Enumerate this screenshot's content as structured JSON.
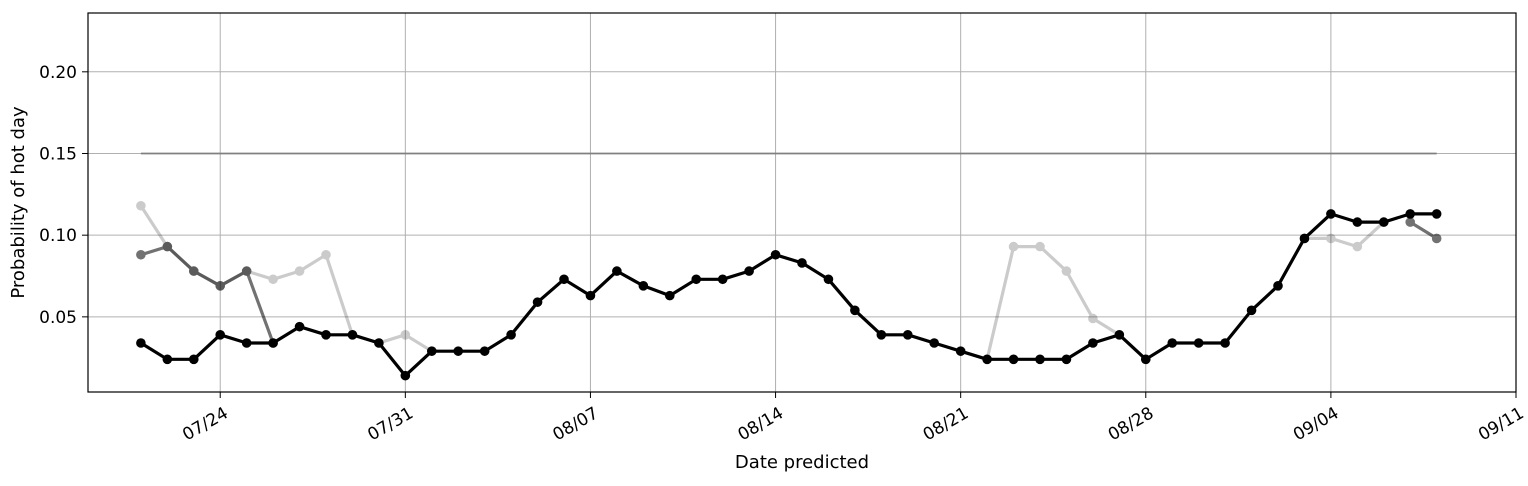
{
  "chart_data": {
    "type": "line",
    "xlabel": "Date predicted",
    "ylabel": "Probability of hot day",
    "ylim": [
      0.004,
      0.236
    ],
    "xlim": [
      "2024-07-19",
      "2024-09-11"
    ],
    "grid": true,
    "y_ticks": [
      0.05,
      0.1,
      0.15,
      0.2
    ],
    "y_tick_labels": [
      "0.05",
      "0.10",
      "0.15",
      "0.20"
    ],
    "x_ticks": [
      "2024-07-24",
      "2024-07-31",
      "2024-08-07",
      "2024-08-14",
      "2024-08-21",
      "2024-08-28",
      "2024-09-04",
      "2024-09-11"
    ],
    "x_tick_labels": [
      "07/24",
      "07/31",
      "08/07",
      "08/14",
      "08/21",
      "08/28",
      "09/04",
      "09/11"
    ],
    "reference_line": {
      "value": 0.15,
      "x": [
        "2024-07-21",
        "2024-09-08"
      ],
      "color": "#808080"
    },
    "series": [
      {
        "color": "#000000",
        "opacity": 0.2,
        "x": [
          "2024-07-21",
          "2024-07-22",
          "2024-07-23",
          "2024-07-24",
          "2024-07-25",
          "2024-07-26",
          "2024-07-27",
          "2024-07-28",
          "2024-07-29",
          "2024-07-30",
          "2024-07-31",
          "2024-08-01",
          "2024-08-21",
          "2024-08-22",
          "2024-08-23",
          "2024-08-24",
          "2024-08-25",
          "2024-08-26",
          "2024-08-27",
          "2024-08-28",
          "2024-09-03",
          "2024-09-04",
          "2024-09-05",
          "2024-09-06"
        ],
        "y": [
          0.118,
          0.093,
          0.078,
          0.069,
          0.078,
          0.073,
          0.078,
          0.088,
          0.039,
          0.034,
          0.039,
          0.029,
          0.029,
          0.024,
          0.093,
          0.093,
          0.078,
          0.049,
          0.039,
          0.024,
          0.098,
          0.098,
          0.093,
          0.108
        ]
      },
      {
        "color": "#000000",
        "opacity": 0.55,
        "x": [
          "2024-07-21",
          "2024-07-22",
          "2024-07-23",
          "2024-07-24",
          "2024-07-25",
          "2024-07-26",
          "2024-09-07",
          "2024-09-08"
        ],
        "y": [
          0.088,
          0.093,
          0.078,
          0.069,
          0.078,
          0.034,
          0.108,
          0.098
        ]
      },
      {
        "color": "#000000",
        "opacity": 1,
        "x": [
          "2024-07-21",
          "2024-07-22",
          "2024-07-23",
          "2024-07-24",
          "2024-07-25",
          "2024-07-26",
          "2024-07-27",
          "2024-07-28",
          "2024-07-29",
          "2024-07-30",
          "2024-07-31",
          "2024-08-01",
          "2024-08-02",
          "2024-08-03",
          "2024-08-04",
          "2024-08-05",
          "2024-08-06",
          "2024-08-07",
          "2024-08-08",
          "2024-08-09",
          "2024-08-10",
          "2024-08-11",
          "2024-08-12",
          "2024-08-13",
          "2024-08-14",
          "2024-08-15",
          "2024-08-16",
          "2024-08-17",
          "2024-08-18",
          "2024-08-19",
          "2024-08-20",
          "2024-08-21",
          "2024-08-22",
          "2024-08-23",
          "2024-08-24",
          "2024-08-25",
          "2024-08-26",
          "2024-08-27",
          "2024-08-28",
          "2024-08-29",
          "2024-08-30",
          "2024-08-31",
          "2024-09-01",
          "2024-09-02",
          "2024-09-03",
          "2024-09-04",
          "2024-09-05",
          "2024-09-06",
          "2024-09-07",
          "2024-09-08"
        ],
        "y": [
          0.034,
          0.024,
          0.024,
          0.039,
          0.034,
          0.034,
          0.044,
          0.039,
          0.039,
          0.034,
          0.014,
          0.029,
          0.029,
          0.029,
          0.039,
          0.059,
          0.073,
          0.063,
          0.078,
          0.069,
          0.063,
          0.073,
          0.073,
          0.078,
          0.088,
          0.083,
          0.073,
          0.054,
          0.039,
          0.039,
          0.034,
          0.029,
          0.024,
          0.024,
          0.024,
          0.024,
          0.034,
          0.039,
          0.024,
          0.034,
          0.034,
          0.034,
          0.054,
          0.069,
          0.098,
          0.113,
          0.108,
          0.108,
          0.113,
          0.113
        ]
      }
    ]
  }
}
